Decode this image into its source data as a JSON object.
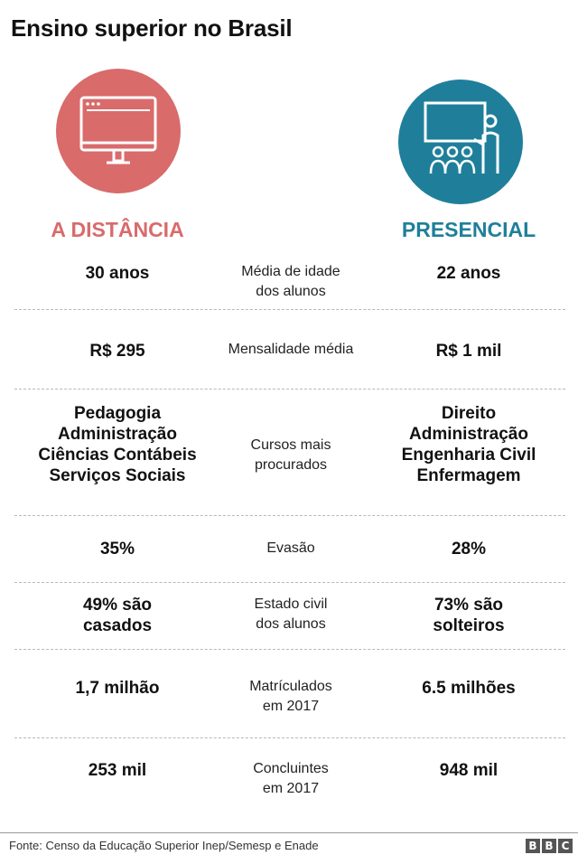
{
  "title": "Ensino superior no Brasil",
  "colors": {
    "distance": "#d96b6b",
    "presencial": "#1f7f9b"
  },
  "icons": {
    "left": "computer-monitor-icon",
    "right": "classroom-teacher-icon"
  },
  "columns": {
    "left": "A DISTÂNCIA",
    "right": "PRESENCIAL"
  },
  "rows": [
    {
      "left": "30 anos",
      "mid": "Média de idade\ndos alunos",
      "right": "22 anos"
    },
    {
      "left": "R$ 295",
      "mid": "Mensalidade média",
      "right": "R$ 1 mil"
    },
    {
      "left": "Pedagogia\nAdministração\nCiências Contábeis\nServiços Sociais",
      "mid": "Cursos mais\nprocurados",
      "right": "Direito\nAdministração\nEngenharia Civil\nEnfermagem"
    },
    {
      "left": "35%",
      "mid": "Evasão",
      "right": "28%"
    },
    {
      "left": "49% são\ncasados",
      "mid": "Estado civil\ndos alunos",
      "right": "73% são\nsolteiros"
    },
    {
      "left": "1,7 milhão",
      "mid": "Matrículados\nem 2017",
      "right": "6.5 milhões"
    },
    {
      "left": "253 mil",
      "mid": "Concluintes\nem 2017",
      "right": "948 mil"
    }
  ],
  "source": "Fonte: Censo da Educação Superior Inep/Semesp e Enade",
  "logo": [
    "B",
    "B",
    "C"
  ]
}
